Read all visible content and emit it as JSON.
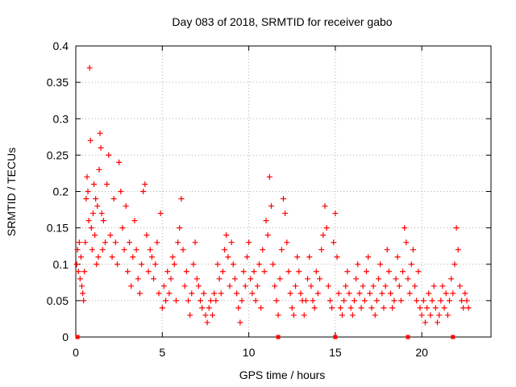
{
  "chart_data": {
    "type": "scatter",
    "title": "Day 083 of 2018, SRMTID for receiver gabo",
    "xlabel": "GPS time / hours",
    "ylabel": "SRMTID / TECUs",
    "xlim": [
      0,
      24
    ],
    "ylim": [
      0,
      0.4
    ],
    "grid": true,
    "marker": "+",
    "marker_color": "#ff0000",
    "x_ticks": [
      {
        "value": 0,
        "label": "0"
      },
      {
        "value": 5,
        "label": "5"
      },
      {
        "value": 10,
        "label": "10"
      },
      {
        "value": 15,
        "label": "15"
      },
      {
        "value": 20,
        "label": "20"
      }
    ],
    "y_ticks": [
      {
        "value": 0,
        "label": "0"
      },
      {
        "value": 0.05,
        "label": "0.05"
      },
      {
        "value": 0.1,
        "label": "0.1"
      },
      {
        "value": 0.15,
        "label": "0.15"
      },
      {
        "value": 0.2,
        "label": "0.2"
      },
      {
        "value": 0.25,
        "label": "0.25"
      },
      {
        "value": 0.3,
        "label": "0.3"
      },
      {
        "value": 0.35,
        "label": "0.35"
      },
      {
        "value": 0.4,
        "label": "0.4"
      }
    ],
    "series": [
      {
        "name": "SRMTID",
        "points": [
          [
            0.05,
            0.1
          ],
          [
            0.1,
            0.12
          ],
          [
            0.15,
            0.09
          ],
          [
            0.2,
            0.13
          ],
          [
            0.25,
            0.08
          ],
          [
            0.3,
            0.11
          ],
          [
            0.35,
            0.07
          ],
          [
            0.4,
            0.06
          ],
          [
            0.45,
            0.05
          ],
          [
            0.5,
            0.09
          ],
          [
            0.55,
            0.13
          ],
          [
            0.6,
            0.19
          ],
          [
            0.65,
            0.22
          ],
          [
            0.7,
            0.2
          ],
          [
            0.75,
            0.16
          ],
          [
            0.8,
            0.37
          ],
          [
            0.85,
            0.27
          ],
          [
            0.9,
            0.15
          ],
          [
            0.95,
            0.12
          ],
          [
            1.0,
            0.17
          ],
          [
            1.05,
            0.21
          ],
          [
            1.1,
            0.14
          ],
          [
            1.15,
            0.19
          ],
          [
            1.2,
            0.1
          ],
          [
            1.25,
            0.18
          ],
          [
            1.3,
            0.11
          ],
          [
            1.35,
            0.23
          ],
          [
            1.4,
            0.28
          ],
          [
            1.45,
            0.26
          ],
          [
            1.5,
            0.17
          ],
          [
            1.55,
            0.12
          ],
          [
            1.6,
            0.16
          ],
          [
            1.7,
            0.13
          ],
          [
            1.8,
            0.21
          ],
          [
            1.9,
            0.25
          ],
          [
            2.0,
            0.14
          ],
          [
            2.1,
            0.11
          ],
          [
            2.2,
            0.19
          ],
          [
            2.3,
            0.13
          ],
          [
            2.4,
            0.1
          ],
          [
            2.5,
            0.24
          ],
          [
            2.6,
            0.2
          ],
          [
            2.7,
            0.15
          ],
          [
            2.8,
            0.12
          ],
          [
            2.9,
            0.18
          ],
          [
            3.0,
            0.09
          ],
          [
            3.1,
            0.13
          ],
          [
            3.2,
            0.07
          ],
          [
            3.3,
            0.11
          ],
          [
            3.4,
            0.16
          ],
          [
            3.5,
            0.12
          ],
          [
            3.6,
            0.08
          ],
          [
            3.7,
            0.06
          ],
          [
            3.8,
            0.1
          ],
          [
            3.9,
            0.2
          ],
          [
            4.0,
            0.21
          ],
          [
            4.1,
            0.14
          ],
          [
            4.2,
            0.09
          ],
          [
            4.3,
            0.12
          ],
          [
            4.4,
            0.11
          ],
          [
            4.5,
            0.08
          ],
          [
            4.6,
            0.1
          ],
          [
            4.7,
            0.13
          ],
          [
            4.8,
            0.06
          ],
          [
            4.9,
            0.17
          ],
          [
            5.0,
            0.04
          ],
          [
            5.1,
            0.07
          ],
          [
            5.2,
            0.05
          ],
          [
            5.3,
            0.09
          ],
          [
            5.4,
            0.06
          ],
          [
            5.5,
            0.08
          ],
          [
            5.6,
            0.11
          ],
          [
            5.7,
            0.1
          ],
          [
            5.8,
            0.05
          ],
          [
            5.9,
            0.13
          ],
          [
            6.0,
            0.15
          ],
          [
            6.1,
            0.19
          ],
          [
            6.2,
            0.12
          ],
          [
            6.3,
            0.07
          ],
          [
            6.4,
            0.09
          ],
          [
            6.5,
            0.05
          ],
          [
            6.6,
            0.03
          ],
          [
            6.7,
            0.06
          ],
          [
            6.8,
            0.1
          ],
          [
            6.9,
            0.13
          ],
          [
            7.0,
            0.08
          ],
          [
            7.1,
            0.07
          ],
          [
            7.2,
            0.05
          ],
          [
            7.3,
            0.04
          ],
          [
            7.4,
            0.06
          ],
          [
            7.5,
            0.03
          ],
          [
            7.6,
            0.02
          ],
          [
            7.7,
            0.04
          ],
          [
            7.8,
            0.05
          ],
          [
            7.9,
            0.03
          ],
          [
            8.0,
            0.06
          ],
          [
            8.1,
            0.05
          ],
          [
            8.2,
            0.1
          ],
          [
            8.3,
            0.08
          ],
          [
            8.4,
            0.06
          ],
          [
            8.5,
            0.09
          ],
          [
            8.6,
            0.12
          ],
          [
            8.7,
            0.14
          ],
          [
            8.8,
            0.11
          ],
          [
            8.9,
            0.07
          ],
          [
            9.0,
            0.13
          ],
          [
            9.1,
            0.1
          ],
          [
            9.2,
            0.08
          ],
          [
            9.3,
            0.06
          ],
          [
            9.4,
            0.04
          ],
          [
            9.5,
            0.02
          ],
          [
            9.6,
            0.05
          ],
          [
            9.7,
            0.09
          ],
          [
            9.8,
            0.07
          ],
          [
            9.9,
            0.11
          ],
          [
            10.0,
            0.13
          ],
          [
            10.1,
            0.08
          ],
          [
            10.2,
            0.06
          ],
          [
            10.3,
            0.09
          ],
          [
            10.4,
            0.05
          ],
          [
            10.5,
            0.07
          ],
          [
            10.6,
            0.1
          ],
          [
            10.7,
            0.04
          ],
          [
            10.8,
            0.12
          ],
          [
            10.9,
            0.09
          ],
          [
            11.0,
            0.16
          ],
          [
            11.1,
            0.14
          ],
          [
            11.2,
            0.22
          ],
          [
            11.3,
            0.18
          ],
          [
            11.4,
            0.1
          ],
          [
            11.5,
            0.07
          ],
          [
            11.6,
            0.05
          ],
          [
            11.7,
            0.03
          ],
          [
            11.8,
            0.08
          ],
          [
            11.9,
            0.12
          ],
          [
            12.0,
            0.19
          ],
          [
            12.1,
            0.17
          ],
          [
            12.2,
            0.13
          ],
          [
            12.3,
            0.09
          ],
          [
            12.4,
            0.06
          ],
          [
            12.5,
            0.04
          ],
          [
            12.6,
            0.03
          ],
          [
            12.7,
            0.07
          ],
          [
            12.8,
            0.11
          ],
          [
            12.9,
            0.09
          ],
          [
            13.0,
            0.06
          ],
          [
            13.1,
            0.05
          ],
          [
            13.2,
            0.03
          ],
          [
            13.3,
            0.05
          ],
          [
            13.4,
            0.08
          ],
          [
            13.5,
            0.11
          ],
          [
            13.6,
            0.07
          ],
          [
            13.7,
            0.05
          ],
          [
            13.8,
            0.04
          ],
          [
            13.9,
            0.09
          ],
          [
            14.0,
            0.06
          ],
          [
            14.1,
            0.08
          ],
          [
            14.2,
            0.12
          ],
          [
            14.3,
            0.14
          ],
          [
            14.4,
            0.18
          ],
          [
            14.5,
            0.15
          ],
          [
            14.6,
            0.07
          ],
          [
            14.7,
            0.05
          ],
          [
            14.8,
            0.04
          ],
          [
            14.9,
            0.13
          ],
          [
            15.0,
            0.17
          ],
          [
            15.1,
            0.11
          ],
          [
            15.2,
            0.06
          ],
          [
            15.3,
            0.04
          ],
          [
            15.4,
            0.03
          ],
          [
            15.5,
            0.05
          ],
          [
            15.6,
            0.07
          ],
          [
            15.7,
            0.09
          ],
          [
            15.8,
            0.06
          ],
          [
            15.9,
            0.04
          ],
          [
            16.0,
            0.03
          ],
          [
            16.1,
            0.05
          ],
          [
            16.2,
            0.08
          ],
          [
            16.3,
            0.1
          ],
          [
            16.4,
            0.06
          ],
          [
            16.5,
            0.04
          ],
          [
            16.6,
            0.07
          ],
          [
            16.7,
            0.05
          ],
          [
            16.8,
            0.09
          ],
          [
            16.9,
            0.11
          ],
          [
            17.0,
            0.06
          ],
          [
            17.1,
            0.04
          ],
          [
            17.2,
            0.07
          ],
          [
            17.3,
            0.03
          ],
          [
            17.4,
            0.05
          ],
          [
            17.5,
            0.08
          ],
          [
            17.6,
            0.1
          ],
          [
            17.7,
            0.06
          ],
          [
            17.8,
            0.04
          ],
          [
            17.9,
            0.07
          ],
          [
            18.0,
            0.12
          ],
          [
            18.1,
            0.09
          ],
          [
            18.2,
            0.06
          ],
          [
            18.3,
            0.04
          ],
          [
            18.4,
            0.05
          ],
          [
            18.5,
            0.08
          ],
          [
            18.6,
            0.11
          ],
          [
            18.7,
            0.07
          ],
          [
            18.8,
            0.05
          ],
          [
            18.9,
            0.09
          ],
          [
            19.0,
            0.15
          ],
          [
            19.1,
            0.13
          ],
          [
            19.2,
            0.08
          ],
          [
            19.3,
            0.06
          ],
          [
            19.4,
            0.1
          ],
          [
            19.5,
            0.12
          ],
          [
            19.6,
            0.07
          ],
          [
            19.7,
            0.05
          ],
          [
            19.8,
            0.09
          ],
          [
            19.9,
            0.04
          ],
          [
            20.0,
            0.03
          ],
          [
            20.1,
            0.05
          ],
          [
            20.2,
            0.02
          ],
          [
            20.3,
            0.04
          ],
          [
            20.4,
            0.06
          ],
          [
            20.5,
            0.03
          ],
          [
            20.6,
            0.05
          ],
          [
            20.7,
            0.07
          ],
          [
            20.8,
            0.04
          ],
          [
            20.9,
            0.02
          ],
          [
            21.0,
            0.03
          ],
          [
            21.1,
            0.05
          ],
          [
            21.2,
            0.07
          ],
          [
            21.3,
            0.04
          ],
          [
            21.4,
            0.06
          ],
          [
            21.5,
            0.03
          ],
          [
            21.6,
            0.05
          ],
          [
            21.7,
            0.08
          ],
          [
            21.8,
            0.06
          ],
          [
            21.9,
            0.1
          ],
          [
            22.0,
            0.15
          ],
          [
            22.1,
            0.12
          ],
          [
            22.2,
            0.07
          ],
          [
            22.3,
            0.05
          ],
          [
            22.4,
            0.04
          ],
          [
            22.5,
            0.06
          ],
          [
            22.6,
            0.05
          ],
          [
            22.7,
            0.04
          ]
        ]
      }
    ],
    "baseline_markers_x": [
      0.1,
      11.7,
      15.0,
      19.2,
      21.8
    ]
  }
}
